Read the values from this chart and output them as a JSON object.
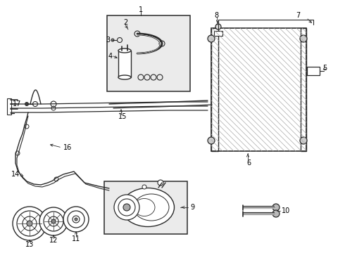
{
  "bg_color": "#ffffff",
  "line_color": "#2a2a2a",
  "label_color": "#000000",
  "box_fill": "#ebebeb",
  "figsize": [
    4.9,
    3.6
  ],
  "dpi": 100
}
